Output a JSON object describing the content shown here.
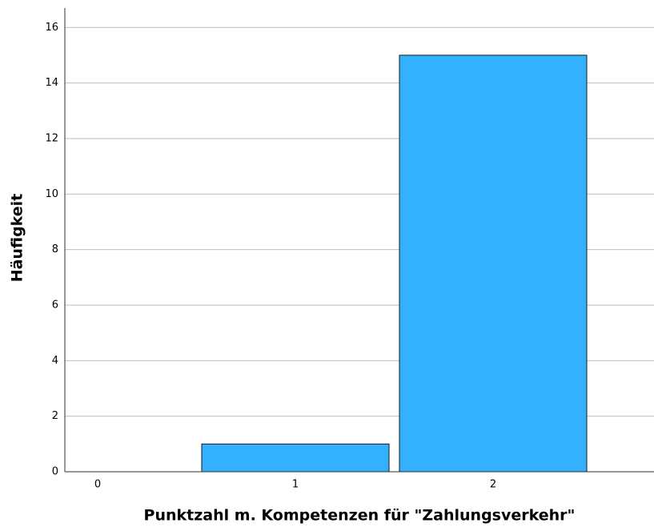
{
  "chart_data": {
    "type": "bar",
    "categories": [
      "0",
      "1",
      "2"
    ],
    "values": [
      0,
      1,
      15
    ],
    "color": "#33b1ff",
    "xlabel": "Punktzahl m. Kompetenzen für \"Zahlungsverkehr\"",
    "ylabel": "Häufigkeit",
    "ylim": [
      0,
      16.7
    ],
    "yticks": [
      0,
      2,
      4,
      6,
      8,
      10,
      12,
      14,
      16
    ],
    "grid": true
  }
}
